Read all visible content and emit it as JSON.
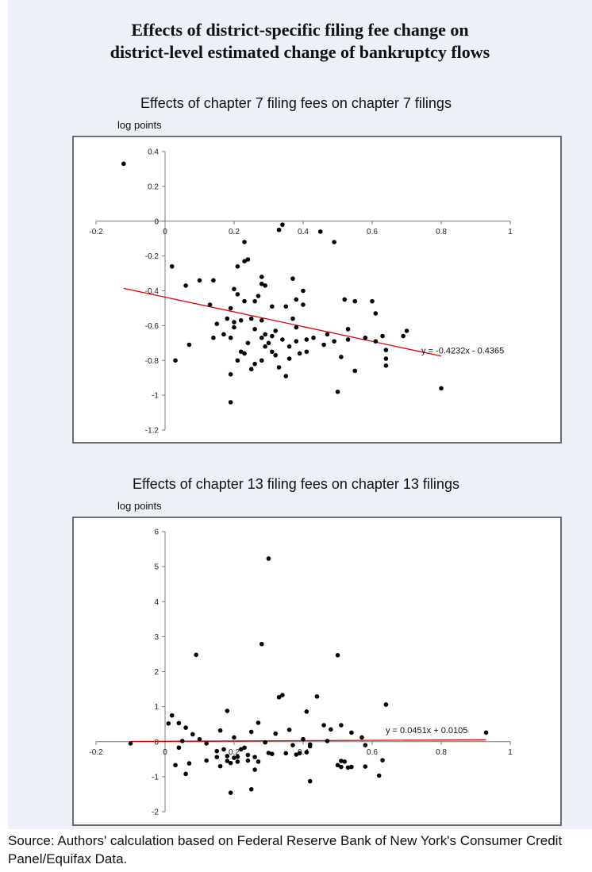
{
  "header": {
    "title_line1": "Effects of district-specific filing fee change on",
    "title_line2": "district-level estimated change of bankruptcy flows"
  },
  "source_note": "Source: Authors' calculation based on Federal Reserve Bank of New York's Consumer Credit Panel/Equifax Data.",
  "chart_data": [
    {
      "type": "scatter",
      "title": "Effects of chapter 7 filing fees on chapter 7 filings",
      "ylabel": "log points",
      "xlim": [
        -0.2,
        1
      ],
      "ylim": [
        -1.2,
        0.4
      ],
      "x_ticks": [
        -0.2,
        0,
        0.2,
        0.4,
        0.6,
        0.8,
        1
      ],
      "y_ticks": [
        -1.2,
        -1,
        -0.8,
        -0.6,
        -0.4,
        -0.2,
        0,
        0.2,
        0.4
      ],
      "grid": false,
      "trendline": {
        "slope": -0.4232,
        "intercept": -0.4365,
        "x_range": [
          -0.12,
          0.8
        ],
        "label": "y = -0.4232x - 0.4365",
        "color": "#e00000"
      },
      "point_color": "#000000",
      "points": [
        [
          -0.12,
          0.33
        ],
        [
          0.02,
          -0.26
        ],
        [
          0.03,
          -0.8
        ],
        [
          0.06,
          -0.37
        ],
        [
          0.07,
          -0.71
        ],
        [
          0.1,
          -0.34
        ],
        [
          0.13,
          -0.48
        ],
        [
          0.14,
          -0.34
        ],
        [
          0.14,
          -0.67
        ],
        [
          0.15,
          -0.59
        ],
        [
          0.17,
          -0.65
        ],
        [
          0.18,
          -0.56
        ],
        [
          0.19,
          -0.5
        ],
        [
          0.19,
          -0.67
        ],
        [
          0.19,
          -0.88
        ],
        [
          0.19,
          -1.04
        ],
        [
          0.2,
          -0.39
        ],
        [
          0.2,
          -0.58
        ],
        [
          0.2,
          -0.61
        ],
        [
          0.21,
          -0.26
        ],
        [
          0.21,
          -0.42
        ],
        [
          0.21,
          -0.8
        ],
        [
          0.22,
          -0.57
        ],
        [
          0.22,
          -0.75
        ],
        [
          0.23,
          -0.12
        ],
        [
          0.23,
          -0.23
        ],
        [
          0.23,
          -0.46
        ],
        [
          0.23,
          -0.76
        ],
        [
          0.24,
          -0.22
        ],
        [
          0.24,
          -0.7
        ],
        [
          0.25,
          -0.56
        ],
        [
          0.25,
          -0.85
        ],
        [
          0.26,
          -0.46
        ],
        [
          0.26,
          -0.62
        ],
        [
          0.26,
          -0.82
        ],
        [
          0.27,
          -0.43
        ],
        [
          0.28,
          -0.32
        ],
        [
          0.28,
          -0.36
        ],
        [
          0.28,
          -0.57
        ],
        [
          0.28,
          -0.67
        ],
        [
          0.28,
          -0.8
        ],
        [
          0.29,
          -0.37
        ],
        [
          0.29,
          -0.65
        ],
        [
          0.29,
          -0.72
        ],
        [
          0.3,
          -0.7
        ],
        [
          0.31,
          -0.49
        ],
        [
          0.31,
          -0.66
        ],
        [
          0.31,
          -0.75
        ],
        [
          0.32,
          -0.63
        ],
        [
          0.32,
          -0.77
        ],
        [
          0.33,
          -0.05
        ],
        [
          0.33,
          -0.84
        ],
        [
          0.34,
          -0.02
        ],
        [
          0.34,
          -0.68
        ],
        [
          0.35,
          -0.49
        ],
        [
          0.35,
          -0.89
        ],
        [
          0.36,
          -0.72
        ],
        [
          0.36,
          -0.79
        ],
        [
          0.37,
          -0.33
        ],
        [
          0.37,
          -0.56
        ],
        [
          0.38,
          -0.69
        ],
        [
          0.38,
          -0.45
        ],
        [
          0.38,
          -0.61
        ],
        [
          0.39,
          -0.76
        ],
        [
          0.4,
          -0.4
        ],
        [
          0.4,
          -0.48
        ],
        [
          0.41,
          -0.68
        ],
        [
          0.41,
          -0.75
        ],
        [
          0.43,
          -0.67
        ],
        [
          0.45,
          -0.06
        ],
        [
          0.46,
          -0.71
        ],
        [
          0.47,
          -0.65
        ],
        [
          0.49,
          -0.12
        ],
        [
          0.49,
          -0.69
        ],
        [
          0.5,
          -0.98
        ],
        [
          0.51,
          -0.78
        ],
        [
          0.52,
          -0.45
        ],
        [
          0.53,
          -0.62
        ],
        [
          0.53,
          -0.68
        ],
        [
          0.55,
          -0.46
        ],
        [
          0.55,
          -0.86
        ],
        [
          0.58,
          -0.67
        ],
        [
          0.6,
          -0.46
        ],
        [
          0.61,
          -0.53
        ],
        [
          0.61,
          -0.69
        ],
        [
          0.63,
          -0.66
        ],
        [
          0.64,
          -0.74
        ],
        [
          0.64,
          -0.79
        ],
        [
          0.64,
          -0.83
        ],
        [
          0.69,
          -0.66
        ],
        [
          0.7,
          -0.63
        ],
        [
          0.8,
          -0.96
        ]
      ]
    },
    {
      "type": "scatter",
      "title": "Effects of chapter 13 filing fees on chapter 13 filings",
      "ylabel": "log points",
      "xlim": [
        -0.2,
        1
      ],
      "ylim": [
        -2,
        6
      ],
      "x_ticks": [
        -0.2,
        0,
        0.2,
        0.4,
        0.6,
        0.8,
        1
      ],
      "y_ticks": [
        -2,
        -1,
        0,
        1,
        2,
        3,
        4,
        5,
        6
      ],
      "grid": false,
      "trendline": {
        "slope": 0.0451,
        "intercept": 0.0105,
        "x_range": [
          -0.1,
          0.93
        ],
        "label": "y = 0.0451x + 0.0105",
        "color": "#e00000"
      },
      "point_color": "#000000",
      "points": [
        [
          -0.1,
          -0.05
        ],
        [
          0.01,
          0.52
        ],
        [
          0.02,
          0.75
        ],
        [
          0.03,
          -0.67
        ],
        [
          0.04,
          -0.17
        ],
        [
          0.04,
          0.53
        ],
        [
          0.05,
          0.02
        ],
        [
          0.06,
          0.4
        ],
        [
          0.06,
          -0.92
        ],
        [
          0.07,
          -0.62
        ],
        [
          0.08,
          0.21
        ],
        [
          0.09,
          2.48
        ],
        [
          0.1,
          0.07
        ],
        [
          0.12,
          -0.54
        ],
        [
          0.12,
          -0.05
        ],
        [
          0.15,
          -0.27
        ],
        [
          0.15,
          -0.44
        ],
        [
          0.16,
          0.32
        ],
        [
          0.16,
          -0.7
        ],
        [
          0.17,
          -0.22
        ],
        [
          0.18,
          -0.55
        ],
        [
          0.18,
          -0.41
        ],
        [
          0.18,
          0.88
        ],
        [
          0.19,
          -1.46
        ],
        [
          0.19,
          -0.61
        ],
        [
          0.2,
          -0.46
        ],
        [
          0.2,
          0.12
        ],
        [
          0.21,
          -0.43
        ],
        [
          0.21,
          -0.57
        ],
        [
          0.22,
          -0.22
        ],
        [
          0.23,
          -0.17
        ],
        [
          0.24,
          -0.54
        ],
        [
          0.24,
          -0.38
        ],
        [
          0.25,
          -1.36
        ],
        [
          0.25,
          0.28
        ],
        [
          0.26,
          -0.8
        ],
        [
          0.26,
          -0.44
        ],
        [
          0.27,
          -0.57
        ],
        [
          0.27,
          0.54
        ],
        [
          0.28,
          2.79
        ],
        [
          0.29,
          -0.02
        ],
        [
          0.3,
          5.23
        ],
        [
          0.3,
          -0.32
        ],
        [
          0.31,
          -0.35
        ],
        [
          0.32,
          0.23
        ],
        [
          0.33,
          1.27
        ],
        [
          0.34,
          1.33
        ],
        [
          0.35,
          -0.33
        ],
        [
          0.36,
          0.34
        ],
        [
          0.37,
          -0.1
        ],
        [
          0.38,
          -0.37
        ],
        [
          0.39,
          -0.33
        ],
        [
          0.4,
          0.07
        ],
        [
          0.41,
          0.86
        ],
        [
          0.41,
          -0.3
        ],
        [
          0.42,
          -1.13
        ],
        [
          0.42,
          -0.08
        ],
        [
          0.42,
          -0.13
        ],
        [
          0.44,
          1.29
        ],
        [
          0.46,
          0.47
        ],
        [
          0.47,
          0.02
        ],
        [
          0.48,
          0.35
        ],
        [
          0.5,
          -0.67
        ],
        [
          0.5,
          2.47
        ],
        [
          0.51,
          -0.72
        ],
        [
          0.51,
          -0.55
        ],
        [
          0.51,
          0.47
        ],
        [
          0.52,
          -0.57
        ],
        [
          0.53,
          -0.74
        ],
        [
          0.54,
          -0.72
        ],
        [
          0.54,
          0.26
        ],
        [
          0.57,
          0.12
        ],
        [
          0.58,
          -0.1
        ],
        [
          0.58,
          -0.71
        ],
        [
          0.62,
          -0.97
        ],
        [
          0.63,
          -0.53
        ],
        [
          0.64,
          1.06
        ],
        [
          0.93,
          0.26
        ]
      ]
    }
  ]
}
